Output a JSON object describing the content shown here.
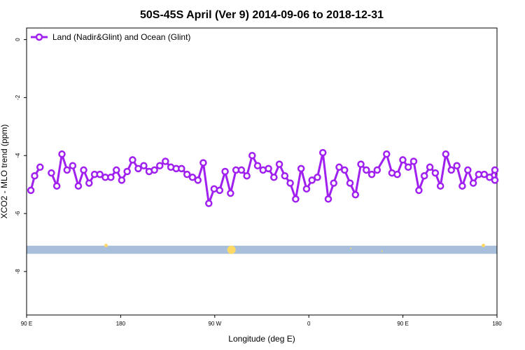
{
  "chart_data": {
    "type": "line",
    "title": "50S-45S April (Ver 9)   2014-09-06 to 2018-12-31",
    "xlabel": "Longitude (deg E)",
    "ylabel": "XCO2 - MLO trend (ppm)",
    "x_ticks": [
      {
        "value": 90,
        "label": "90 E"
      },
      {
        "value": 180,
        "label": "180"
      },
      {
        "value": 270,
        "label": "90 W"
      },
      {
        "value": 360,
        "label": "0"
      },
      {
        "value": 450,
        "label": "90 E"
      },
      {
        "value": 540,
        "label": "180"
      }
    ],
    "y_ticks": [
      {
        "value": 0,
        "label": "0"
      },
      {
        "value": -2,
        "label": "-2"
      },
      {
        "value": -4,
        "label": "-4"
      },
      {
        "value": -6,
        "label": "-6"
      },
      {
        "value": -8,
        "label": "-8"
      }
    ],
    "xlim": [
      90,
      540
    ],
    "ylim": [
      -9.5,
      0.4
    ],
    "legend_position": "top-left",
    "grid": false,
    "series": [
      {
        "name": "Land (Nadir&Glint) and Ocean (Glint)",
        "color": "#a020f0",
        "segments": [
          {
            "x": [
              94.1,
              97.7,
              102.9
            ],
            "y": [
              -5.2,
              -4.7,
              -4.4
            ]
          },
          {
            "x": [
              113.7,
              118.9,
              123.8,
              128.7,
              134.1,
              139.5,
              144.6,
              149.8,
              155.0,
              160.1,
              165.3,
              170.6,
              175.9,
              181.0,
              186.2,
              191.4,
              196.8,
              202.1,
              207.2,
              212.3,
              217.4,
              222.8,
              228.0,
              233.1,
              238.2,
              243.5,
              248.7,
              253.9,
              259.0,
              264.3,
              269.4,
              274.7,
              279.9,
              285.1,
              290.3,
              295.5,
              300.7,
              305.8,
              311.0,
              316.2,
              321.4,
              326.6,
              331.8,
              337.0,
              342.2,
              347.4,
              352.6,
              357.8,
              363.0,
              368.2,
              373.4,
              378.6,
              383.8,
              389.0,
              394.2,
              399.4,
              404.6,
              409.8,
              415.0
            ],
            "y": [
              -4.6,
              -5.05,
              -3.95,
              -4.5,
              -4.35,
              -5.05,
              -4.5,
              -4.95,
              -4.65,
              -4.65,
              -4.75,
              -4.75,
              -4.5,
              -4.85,
              -4.55,
              -4.15,
              -4.45,
              -4.35,
              -4.55,
              -4.5,
              -4.35,
              -4.2,
              -4.4,
              -4.45,
              -4.45,
              -4.65,
              -4.75,
              -4.85,
              -4.25,
              -5.65,
              -5.15,
              -5.2,
              -4.55,
              -5.3,
              -4.5,
              -4.5,
              -4.7,
              -4.0,
              -4.35,
              -4.5,
              -4.45,
              -4.75,
              -4.3,
              -4.7,
              -4.95,
              -5.5,
              -4.45,
              -5.15,
              -4.85,
              -4.75,
              -3.9,
              -5.5,
              -4.95,
              -4.4,
              -4.5,
              -4.95,
              -5.35,
              -4.3,
              -4.5
            ]
          },
          {
            "x": [
              420.2,
              425.4,
              434.4,
              439.5,
              444.6,
              449.9,
              455.1,
              460.3,
              465.3,
              470.5,
              475.8,
              481.0,
              485.9,
              491.0,
              496.3,
              501.6,
              506.8,
              512.1,
              517.3,
              522.5,
              527.8,
              532.9,
              538.0
            ],
            "y": [
              -4.65,
              -4.5,
              -3.95,
              -4.6,
              -4.65,
              -4.15,
              -4.4,
              -4.2,
              -5.2,
              -4.7,
              -4.4,
              -4.6,
              -5.05,
              -3.95,
              -4.5,
              -4.35,
              -5.05,
              -4.5,
              -4.95,
              -4.65,
              -4.65,
              -4.75,
              -4.5
            ]
          }
        ],
        "tail": {
          "x": [
            538.0,
            540.0
          ],
          "y": [
            -4.5,
            -4.85
          ]
        }
      }
    ],
    "background_band": {
      "y_center": -7.25,
      "height_ppm": 0.28,
      "color": "#a8bfdc"
    },
    "band_markers": [
      {
        "x": 166.0,
        "y": -7.1,
        "size": "small",
        "color": "#ffd966"
      },
      {
        "x": 286.0,
        "y": -7.25,
        "size": "large",
        "color": "#ffd966"
      },
      {
        "x": 400.0,
        "y": -7.2,
        "size": "tiny",
        "color": "#ffd966"
      },
      {
        "x": 430.0,
        "y": -7.3,
        "size": "tiny",
        "color": "#ffd966"
      },
      {
        "x": 527.0,
        "y": -7.1,
        "size": "small",
        "color": "#ffd966"
      }
    ]
  }
}
